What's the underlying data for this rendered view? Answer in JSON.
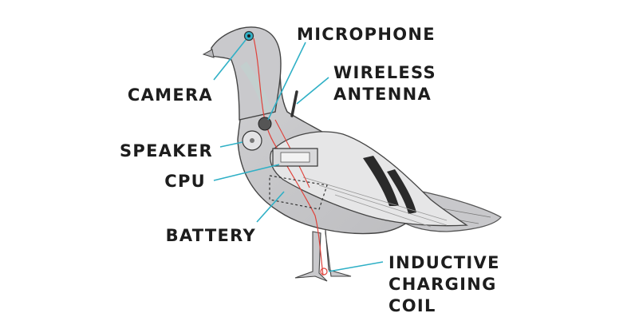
{
  "diagram": {
    "subject": "pigeon",
    "leader_color": "#2fb0c6",
    "wire_color": "#e0413a",
    "labels": {
      "microphone": [
        "MICROPHONE"
      ],
      "wireless_antenna": [
        "WIRELESS",
        "ANTENNA"
      ],
      "camera": [
        "CAMERA"
      ],
      "speaker": [
        "SPEAKER"
      ],
      "cpu": [
        "CPU"
      ],
      "battery": [
        "BATTERY"
      ],
      "inductive_charging_coil": [
        "INDUCTIVE",
        "CHARGING",
        "COIL"
      ]
    }
  }
}
